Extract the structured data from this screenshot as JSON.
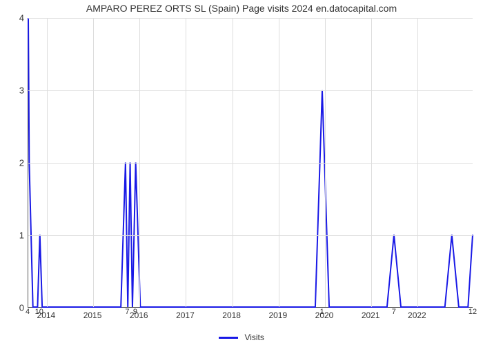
{
  "chart": {
    "type": "line",
    "title": "AMPARO PEREZ ORTS SL (Spain) Page visits 2024 en.datocapital.com",
    "title_fontsize": 14,
    "title_color": "#333333",
    "background_color": "#ffffff",
    "plot_border_color": "#555555",
    "grid_color": "#dddddd",
    "tick_font_size": 12,
    "tick_color": "#333333",
    "x_domain_start": 2013.6,
    "x_domain_end": 2023.2,
    "y_domain_min": 0,
    "y_domain_max": 4,
    "y_ticks": [
      0,
      1,
      2,
      3,
      4
    ],
    "x_year_ticks": [
      2014,
      2015,
      2016,
      2017,
      2018,
      2019,
      2020,
      2021,
      2022
    ],
    "bottom_value_labels": [
      {
        "x": 2013.6,
        "text": "4"
      },
      {
        "x": 2013.85,
        "text": "10"
      },
      {
        "x": 2015.75,
        "text": "7"
      },
      {
        "x": 2015.92,
        "text": "9"
      },
      {
        "x": 2019.95,
        "text": "1"
      },
      {
        "x": 2021.5,
        "text": "7"
      },
      {
        "x": 2023.2,
        "text": "12"
      }
    ],
    "series": {
      "name": "Visits",
      "color": "#1919e6",
      "line_width": 2,
      "points": [
        {
          "x": 2013.6,
          "y": 4.0
        },
        {
          "x": 2013.62,
          "y": 2.0
        },
        {
          "x": 2013.7,
          "y": 0.0
        },
        {
          "x": 2013.8,
          "y": 0.0
        },
        {
          "x": 2013.85,
          "y": 1.0
        },
        {
          "x": 2013.9,
          "y": 0.0
        },
        {
          "x": 2015.6,
          "y": 0.0
        },
        {
          "x": 2015.7,
          "y": 2.0
        },
        {
          "x": 2015.75,
          "y": 0.0
        },
        {
          "x": 2015.8,
          "y": 2.0
        },
        {
          "x": 2015.85,
          "y": 0.0
        },
        {
          "x": 2015.92,
          "y": 2.0
        },
        {
          "x": 2016.02,
          "y": 0.0
        },
        {
          "x": 2019.8,
          "y": 0.0
        },
        {
          "x": 2019.95,
          "y": 3.0
        },
        {
          "x": 2020.1,
          "y": 0.0
        },
        {
          "x": 2021.35,
          "y": 0.0
        },
        {
          "x": 2021.5,
          "y": 1.0
        },
        {
          "x": 2021.65,
          "y": 0.0
        },
        {
          "x": 2022.6,
          "y": 0.0
        },
        {
          "x": 2022.75,
          "y": 1.0
        },
        {
          "x": 2022.9,
          "y": 0.0
        },
        {
          "x": 2023.1,
          "y": 0.0
        },
        {
          "x": 2023.2,
          "y": 1.0
        }
      ]
    },
    "legend": {
      "label": "Visits",
      "swatch_color": "#1919e6"
    }
  }
}
